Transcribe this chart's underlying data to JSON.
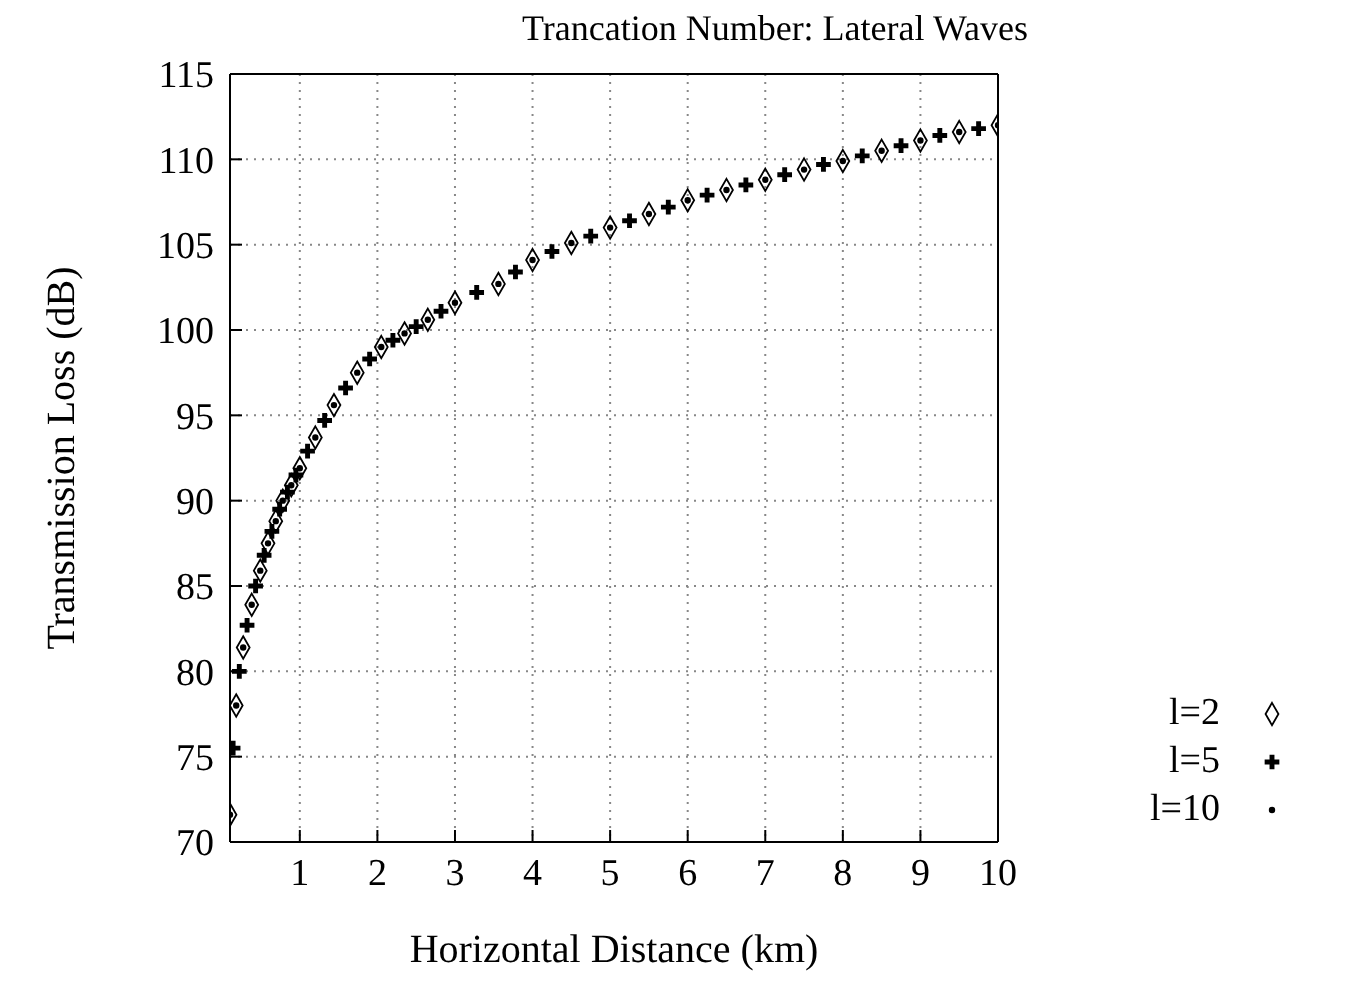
{
  "chart_data": {
    "type": "scatter",
    "title": "Trancation Number: Lateral Waves",
    "xlabel": "Horizontal Distance (km)",
    "ylabel": "Transmission Loss (dB)",
    "x": [
      0.1,
      0.18,
      0.27,
      0.38,
      0.49,
      0.59,
      0.69,
      0.78,
      0.89,
      1.0,
      1.2,
      1.44,
      1.74,
      2.05,
      2.35,
      2.65,
      3.0,
      3.56,
      4.0,
      4.5,
      5.0,
      5.5,
      6.0,
      6.5,
      7.0,
      7.5,
      8.0,
      8.5,
      9.0,
      9.5,
      10.0
    ],
    "series": [
      {
        "name": "l=2",
        "color": "#000000",
        "marker": "diamond",
        "values": [
          71.6,
          78.0,
          81.4,
          83.9,
          85.9,
          87.5,
          88.8,
          90.0,
          90.9,
          91.9,
          93.7,
          95.6,
          97.5,
          99.0,
          99.8,
          100.6,
          101.6,
          102.7,
          104.1,
          105.1,
          106.0,
          106.8,
          107.6,
          108.2,
          108.8,
          109.4,
          109.9,
          110.5,
          111.1,
          111.6,
          112.0
        ]
      },
      {
        "name": "l=5",
        "color": "#000000",
        "marker": "cross",
        "x": [
          0.14,
          0.22,
          0.32,
          0.43,
          0.54,
          0.64,
          0.74,
          0.84,
          0.95,
          1.1,
          1.32,
          1.59,
          1.9,
          2.2,
          2.5,
          2.82,
          3.28,
          3.78,
          4.25,
          4.75,
          5.25,
          5.75,
          6.25,
          6.75,
          7.25,
          7.75,
          8.25,
          8.75,
          9.25,
          9.75
        ],
        "values": [
          75.5,
          80.0,
          82.7,
          85.0,
          86.8,
          88.2,
          89.5,
          90.5,
          91.5,
          92.9,
          94.7,
          96.6,
          98.3,
          99.4,
          100.2,
          101.1,
          102.2,
          103.4,
          104.6,
          105.5,
          106.4,
          107.2,
          107.9,
          108.5,
          109.1,
          109.7,
          110.2,
          110.8,
          111.4,
          111.8
        ]
      },
      {
        "name": "l=10",
        "color": "#000000",
        "marker": "circle",
        "values": [
          71.6,
          78.0,
          81.4,
          83.9,
          85.9,
          87.5,
          88.8,
          90.0,
          90.9,
          91.9,
          93.7,
          95.6,
          97.5,
          99.0,
          99.8,
          100.6,
          101.6,
          102.7,
          104.1,
          105.1,
          106.0,
          106.8,
          107.6,
          108.2,
          108.8,
          109.4,
          109.9,
          110.5,
          111.1,
          111.6,
          112.0
        ]
      }
    ],
    "xlim": [
      0.1,
      10
    ],
    "xticks": [
      1,
      2,
      3,
      4,
      5,
      6,
      7,
      8,
      9,
      10
    ],
    "ylim": [
      70,
      115
    ],
    "yticks": [
      70,
      75,
      80,
      85,
      90,
      95,
      100,
      105,
      110,
      115
    ],
    "grid": true,
    "legend": "right"
  }
}
